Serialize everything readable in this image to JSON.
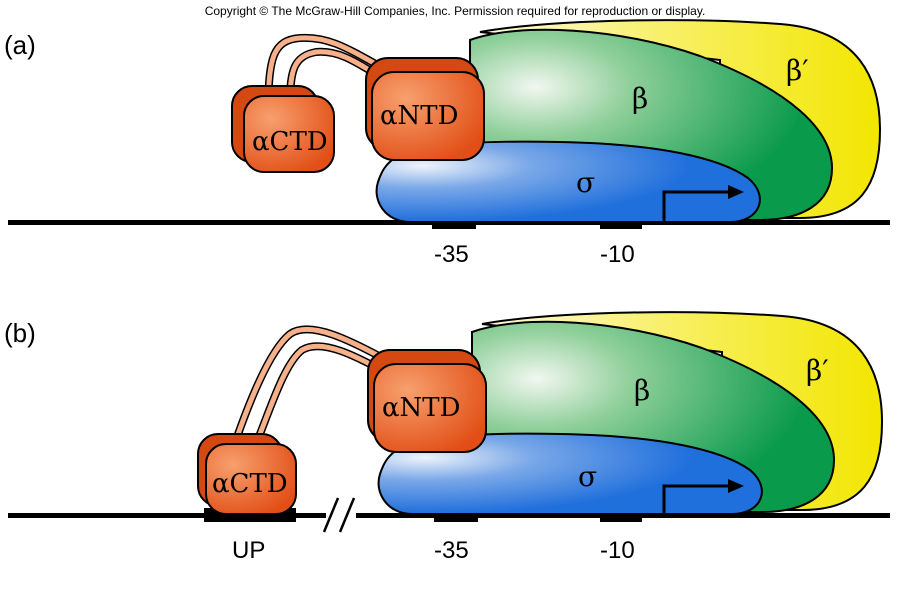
{
  "copyright": "Copyright © The McGraw-Hill Companies, Inc. Permission required for reproduction or display.",
  "panels": [
    {
      "label": "(a)",
      "subunits": {
        "actd": "αCTD",
        "antd": "αNTD",
        "beta": "β",
        "beta_prime": "β′",
        "sigma": "σ"
      },
      "elements": {
        "m35": "-35",
        "m10": "-10"
      }
    },
    {
      "label": "(b)",
      "subunits": {
        "actd": "αCTD",
        "antd": "αNTD",
        "beta": "β",
        "beta_prime": "β′",
        "sigma": "σ"
      },
      "elements": {
        "up": "UP",
        "m35": "-35",
        "m10": "-10"
      }
    }
  ],
  "colors": {
    "alpha": "#e8541c",
    "beta": "#1ea85a",
    "beta_prime": "#f4ec1a",
    "sigma": "#2c7fe0",
    "dna": "#000000"
  }
}
